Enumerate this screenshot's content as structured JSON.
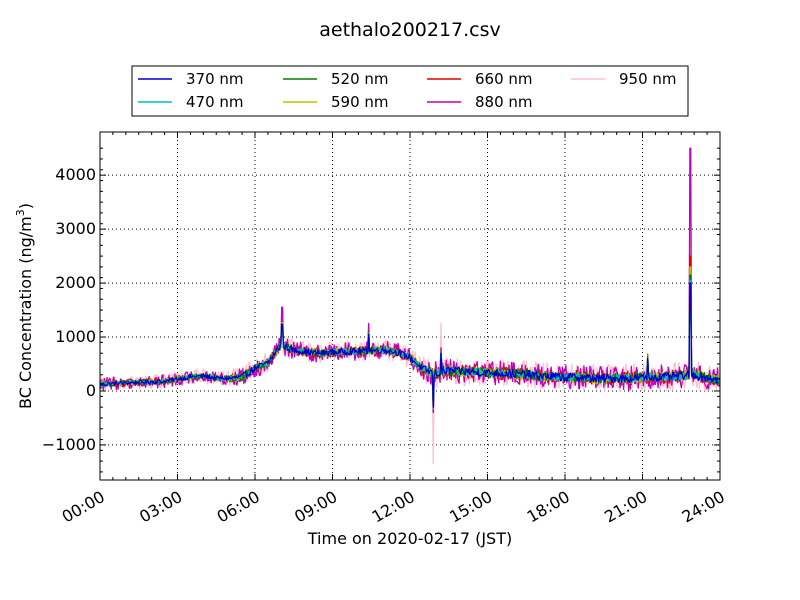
{
  "chart_data": {
    "type": "line",
    "title": "aethalo200217.csv",
    "xlabel": "Time on 2020-02-17 (JST)",
    "ylabel_main": "BC Concentration (ng/m",
    "ylabel_sup": "3",
    "ylabel_end": ")",
    "xlim": [
      0,
      24
    ],
    "ylim": [
      -1650,
      4800
    ],
    "grid": true,
    "legend": "top-outside",
    "x_ticks": [
      {
        "v": 0,
        "label": "00:00"
      },
      {
        "v": 3,
        "label": "03:00"
      },
      {
        "v": 6,
        "label": "06:00"
      },
      {
        "v": 9,
        "label": "09:00"
      },
      {
        "v": 12,
        "label": "12:00"
      },
      {
        "v": 15,
        "label": "15:00"
      },
      {
        "v": 18,
        "label": "18:00"
      },
      {
        "v": 21,
        "label": "21:00"
      },
      {
        "v": 24,
        "label": "24:00"
      }
    ],
    "y_ticks": [
      {
        "v": -1000,
        "label": "−1000"
      },
      {
        "v": 0,
        "label": "0"
      },
      {
        "v": 1000,
        "label": "1000"
      },
      {
        "v": 2000,
        "label": "2000"
      },
      {
        "v": 3000,
        "label": "3000"
      },
      {
        "v": 4000,
        "label": "4000"
      }
    ],
    "trend_x": [
      0,
      0.5,
      1,
      1.5,
      2,
      2.5,
      3,
      3.5,
      4,
      4.5,
      5,
      5.5,
      6,
      6.5,
      7,
      7.5,
      8,
      8.5,
      9,
      9.5,
      10,
      10.5,
      11,
      11.5,
      12,
      12.5,
      13,
      13.5,
      14,
      14.5,
      15,
      15.5,
      16,
      16.5,
      17,
      17.5,
      18,
      18.5,
      19,
      19.5,
      20,
      20.5,
      21,
      21.5,
      22,
      22.5,
      23,
      23.5,
      24
    ],
    "trend_y": [
      120,
      140,
      150,
      160,
      170,
      180,
      220,
      260,
      280,
      240,
      230,
      260,
      420,
      520,
      850,
      760,
      720,
      700,
      720,
      730,
      740,
      750,
      760,
      720,
      620,
      400,
      320,
      380,
      360,
      350,
      340,
      330,
      320,
      310,
      280,
      270,
      250,
      260,
      240,
      230,
      240,
      230,
      250,
      260,
      260,
      280,
      300,
      250,
      200
    ],
    "spikes": [
      {
        "x": 7.05,
        "y": [
          1230,
          1240,
          1250,
          1270,
          1290,
          1550,
          1300
        ]
      },
      {
        "x": 10.4,
        "y": [
          1050,
          1060,
          1070,
          1080,
          1100,
          1250,
          1120
        ]
      },
      {
        "x": 12.9,
        "y": [
          -300,
          -310,
          -320,
          -330,
          -350,
          -400,
          -1350
        ]
      },
      {
        "x": 13.2,
        "y": [
          700,
          710,
          720,
          730,
          740,
          800,
          1260
        ]
      },
      {
        "x": 21.2,
        "y": [
          610,
          620,
          640,
          660,
          680,
          420,
          600
        ]
      },
      {
        "x": 22.85,
        "y": [
          2000,
          2050,
          2150,
          2300,
          2500,
          4500,
          4100
        ]
      }
    ],
    "series": [
      {
        "name": "370 nm",
        "color": "#0000cc",
        "noise": 60
      },
      {
        "name": "470 nm",
        "color": "#00bfbf",
        "noise": 60
      },
      {
        "name": "520 nm",
        "color": "#007f00",
        "noise": 70
      },
      {
        "name": "590 nm",
        "color": "#bfbf00",
        "noise": 75
      },
      {
        "name": "660 nm",
        "color": "#e00000",
        "noise": 90
      },
      {
        "name": "880 nm",
        "color": "#bf00bf",
        "noise": 170
      },
      {
        "name": "950 nm",
        "color": "#ffc0cb",
        "noise": 200
      }
    ]
  }
}
